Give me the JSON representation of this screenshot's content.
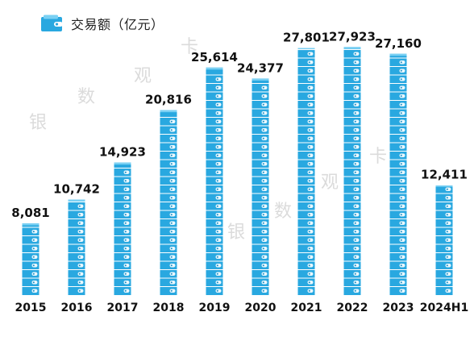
{
  "legend": {
    "label": "交易额（亿元）",
    "icon": "wallet-icon"
  },
  "watermark": [
    "银",
    "数",
    "观",
    "卡",
    "银",
    "数",
    "观",
    "卡"
  ],
  "colors": {
    "bar": "#29a8e0",
    "bar_dark": "#1b8fc6",
    "bar_light": "#7ad0f3",
    "text": "#111111"
  },
  "chart_data": {
    "type": "bar",
    "categories": [
      "2015",
      "2016",
      "2017",
      "2018",
      "2019",
      "2020",
      "2021",
      "2022",
      "2023",
      "2024H1"
    ],
    "values": [
      8081,
      10742,
      14923,
      20816,
      25614,
      24377,
      27801,
      27923,
      27160,
      12411
    ],
    "value_labels": [
      "8,081",
      "10,742",
      "14,923",
      "20,816",
      "25,614",
      "24,377",
      "27,801",
      "27,923",
      "27,160",
      "12,411"
    ],
    "ylim": [
      0,
      28500
    ],
    "grid": false,
    "legend_position": "top-left",
    "xlabel": "",
    "ylabel": ""
  }
}
